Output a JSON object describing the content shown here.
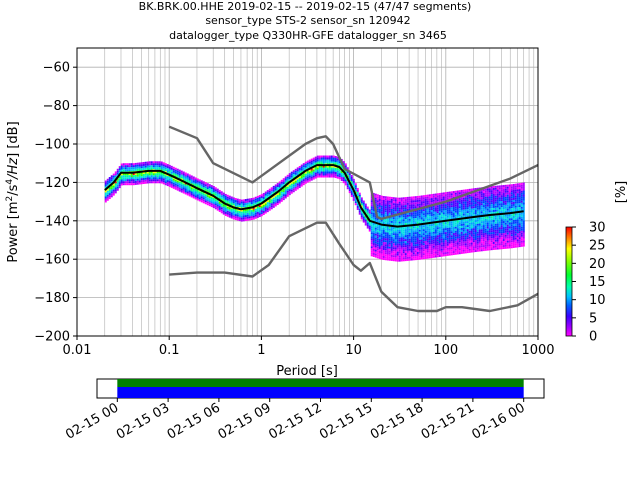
{
  "title_lines": [
    "BK.BRK.00.HHE   2019-02-15 -- 2019-02-15  (47/47 segments)",
    "sensor_type STS-2 sensor_sn 120942",
    "datalogger_type Q330HR-GFE datalogger_sn 3465"
  ],
  "chart_data": [
    {
      "type": "heatmap",
      "xlabel": "Period [s]",
      "ylabel_prefix": "Power [",
      "ylabel_suffix": "] [dB]",
      "x_scale": "log",
      "xlim": [
        0.01,
        1000
      ],
      "ylim": [
        -200,
        -50
      ],
      "x_ticks": [
        {
          "value": 0.01,
          "label": "0.01"
        },
        {
          "value": 0.1,
          "label": "0.1"
        },
        {
          "value": 1,
          "label": "1"
        },
        {
          "value": 10,
          "label": "10"
        },
        {
          "value": 100,
          "label": "100"
        },
        {
          "value": 1000,
          "label": "1000"
        }
      ],
      "y_ticks": [
        {
          "value": -60,
          "label": "−60"
        },
        {
          "value": -80,
          "label": "−80"
        },
        {
          "value": -100,
          "label": "−100"
        },
        {
          "value": -120,
          "label": "−120"
        },
        {
          "value": -140,
          "label": "−140"
        },
        {
          "value": -160,
          "label": "−160"
        },
        {
          "value": -180,
          "label": "−180"
        },
        {
          "value": -200,
          "label": "−200"
        }
      ],
      "grid": true,
      "colorbar": {
        "label": "[%]",
        "range": [
          0,
          30
        ],
        "ticks": [
          {
            "value": 0,
            "label": "0"
          },
          {
            "value": 5,
            "label": "5"
          },
          {
            "value": 10,
            "label": "10"
          },
          {
            "value": 15,
            "label": "15"
          },
          {
            "value": 20,
            "label": "20"
          },
          {
            "value": 25,
            "label": "25"
          },
          {
            "value": 30,
            "label": "30"
          }
        ]
      },
      "series": [
        {
          "color": "#000000",
          "x": [
            0.02,
            0.025,
            0.03,
            0.04,
            0.06,
            0.08,
            0.1,
            0.15,
            0.2,
            0.3,
            0.4,
            0.5,
            0.6,
            0.8,
            1.0,
            1.5,
            2,
            3,
            4,
            5,
            6,
            7,
            8,
            10,
            12,
            15,
            20,
            30,
            50,
            100,
            200,
            300,
            500,
            700
          ],
          "y": [
            -124,
            -120,
            -115,
            -115,
            -114,
            -114,
            -116,
            -120,
            -123,
            -127,
            -131,
            -133,
            -134,
            -133,
            -131,
            -125,
            -120,
            -114,
            -111,
            -111,
            -111,
            -112,
            -115,
            -124,
            -133,
            -140,
            -142,
            -143,
            -142,
            -140,
            -138,
            -137,
            -136,
            -135
          ]
        },
        {
          "color": "#666666",
          "x": [
            0.1,
            0.2,
            0.3,
            0.8,
            3,
            4,
            5,
            6,
            8,
            15,
            18,
            20,
            100,
            500,
            1000
          ],
          "y": [
            -91,
            -97,
            -110,
            -120,
            -100,
            -97,
            -96,
            -100,
            -113,
            -120,
            -138,
            -139,
            -130,
            -118,
            -111
          ]
        },
        {
          "color": "#666666",
          "x": [
            0.1,
            0.2,
            0.4,
            0.8,
            1.2,
            2,
            4,
            5,
            7,
            10,
            12,
            15,
            20,
            30,
            50,
            80,
            100,
            150,
            300,
            600,
            1000
          ],
          "y": [
            -168,
            -167,
            -167,
            -169,
            -163,
            -148,
            -141,
            -141,
            -152,
            -163,
            -166,
            -162,
            -177,
            -185,
            -187,
            -187,
            -185,
            -185,
            -187,
            -184,
            -178
          ]
        }
      ]
    },
    {
      "type": "area",
      "x_ticks": [
        {
          "value": 0,
          "label": "02-15 00"
        },
        {
          "value": 3,
          "label": "02-15 03"
        },
        {
          "value": 6,
          "label": "02-15 06"
        },
        {
          "value": 9,
          "label": "02-15 09"
        },
        {
          "value": 12,
          "label": "02-15 12"
        },
        {
          "value": 15,
          "label": "02-15 15"
        },
        {
          "value": 18,
          "label": "02-15 18"
        },
        {
          "value": 21,
          "label": "02-15 21"
        },
        {
          "value": 24,
          "label": "02-16 00"
        }
      ],
      "xlim": [
        -1.2,
        25.2
      ],
      "coverage": {
        "start": 0,
        "end": 24,
        "top_color": "#008000",
        "bottom_color": "#0000ff"
      }
    }
  ]
}
